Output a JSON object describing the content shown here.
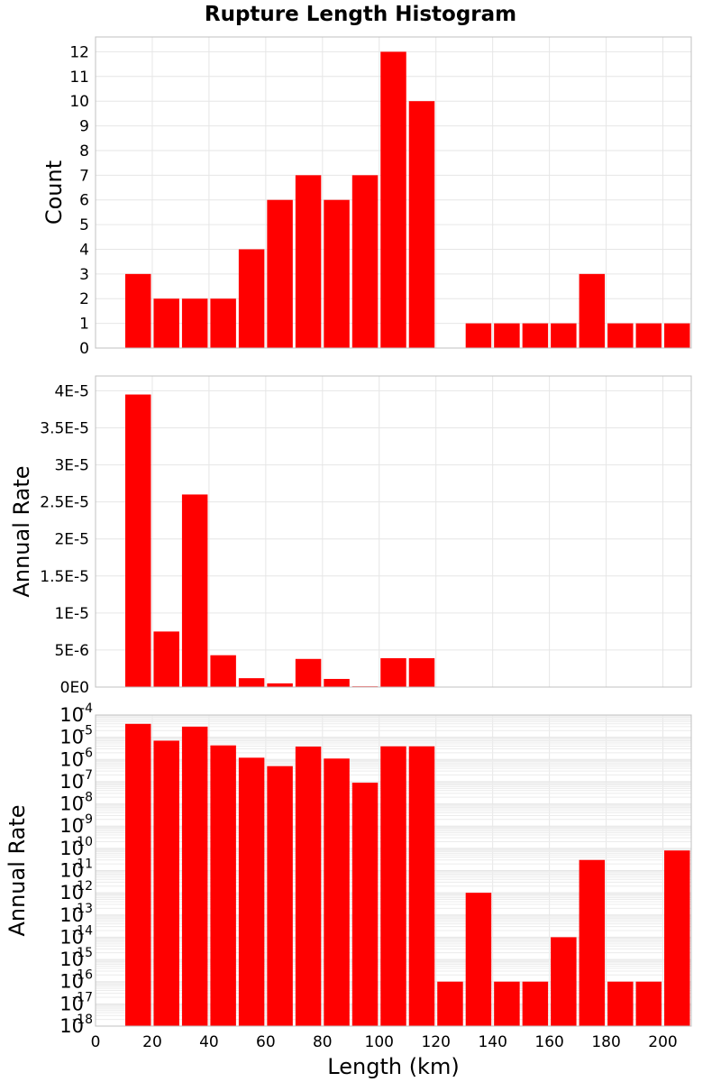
{
  "chart_data": {
    "title": "Rupture Length Histogram",
    "type": "bar",
    "bin_width": 10,
    "xlabel": "Length (km)",
    "xlim": [
      0,
      210
    ],
    "x_ticks": [
      0,
      20,
      40,
      60,
      80,
      100,
      120,
      140,
      160,
      180,
      200
    ],
    "colors": {
      "bars": "#ff0000"
    },
    "grid": true,
    "panels": [
      {
        "name": "count",
        "ylabel": "Count",
        "scale": "linear",
        "ylim": [
          0,
          12.6
        ],
        "y_ticks": [
          0,
          1,
          2,
          3,
          4,
          5,
          6,
          7,
          8,
          9,
          10,
          11,
          12
        ],
        "y_tick_labels": [
          "0",
          "1",
          "2",
          "3",
          "4",
          "5",
          "6",
          "7",
          "8",
          "9",
          "10",
          "11",
          "12"
        ],
        "x": [
          15,
          25,
          35,
          45,
          55,
          65,
          75,
          85,
          95,
          105,
          115,
          135,
          145,
          155,
          165,
          175,
          185,
          195,
          205
        ],
        "values": [
          3,
          2,
          2,
          2,
          4,
          6,
          7,
          6,
          7,
          12,
          10,
          1,
          1,
          1,
          1,
          3,
          1,
          1,
          1
        ]
      },
      {
        "name": "annual-rate-linear",
        "ylabel": "Annual Rate",
        "scale": "linear",
        "ylim": [
          0,
          4.2e-05
        ],
        "y_ticks": [
          0,
          5e-06,
          1e-05,
          1.5e-05,
          2e-05,
          2.5e-05,
          3e-05,
          3.5e-05,
          4e-05
        ],
        "y_tick_labels": [
          "0E0",
          "5E-6",
          "1E-5",
          "1.5E-5",
          "2E-5",
          "2.5E-5",
          "3E-5",
          "3.5E-5",
          "4E-5"
        ],
        "x": [
          15,
          25,
          35,
          45,
          55,
          65,
          75,
          85,
          95,
          105,
          115
        ],
        "values": [
          3.95e-05,
          7.5e-06,
          2.6e-05,
          4.3e-06,
          1.2e-06,
          5e-07,
          3.8e-06,
          1.1e-06,
          1e-07,
          3.9e-06,
          3.9e-06
        ]
      },
      {
        "name": "annual-rate-log",
        "ylabel": "Annual Rate",
        "scale": "log",
        "ylim": [
          1e-18,
          0.0001
        ],
        "y_ticks": [
          1e-18,
          1e-17,
          1e-16,
          1e-15,
          1e-14,
          1e-13,
          1e-12,
          1e-11,
          1e-10,
          1e-09,
          1e-08,
          1e-07,
          1e-06,
          1e-05,
          0.0001
        ],
        "y_tick_bases": [
          "10",
          "10",
          "10",
          "10",
          "10",
          "10",
          "10",
          "10",
          "10",
          "10",
          "10",
          "10",
          "10",
          "10",
          "10"
        ],
        "y_tick_exponents": [
          "-18",
          "-17",
          "-16",
          "-15",
          "-14",
          "-13",
          "-12",
          "-11",
          "-10",
          "-9",
          "-8",
          "-7",
          "-6",
          "-5",
          "-4"
        ],
        "x": [
          15,
          25,
          35,
          45,
          55,
          65,
          75,
          85,
          95,
          105,
          115,
          125,
          135,
          145,
          155,
          165,
          175,
          185,
          195,
          205
        ],
        "values": [
          4e-05,
          7e-06,
          3e-05,
          4.3e-06,
          1.2e-06,
          5e-07,
          3.8e-06,
          1.1e-06,
          9e-08,
          3.9e-06,
          3.9e-06,
          1e-16,
          1e-12,
          1e-16,
          1e-16,
          1e-14,
          3e-11,
          1e-16,
          1e-16,
          8e-11
        ]
      }
    ]
  }
}
